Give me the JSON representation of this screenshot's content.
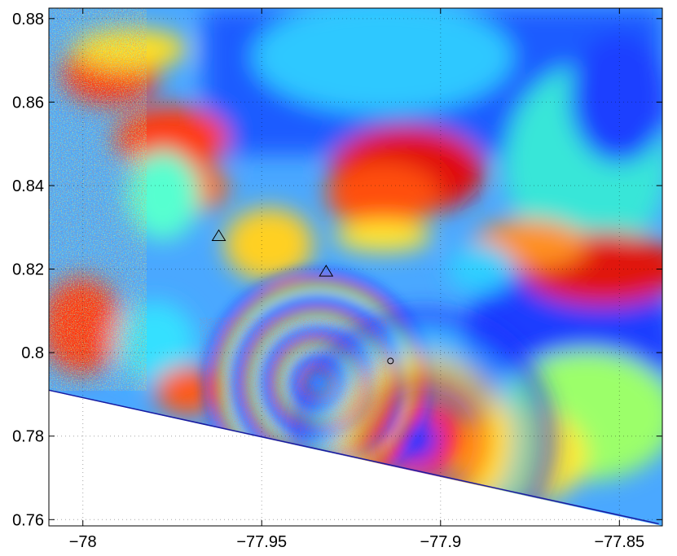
{
  "figure": {
    "type": "interferogram-map",
    "colormap": "jet",
    "grid": "dotted",
    "x_axis": {
      "ticks": [
        {
          "value": -78,
          "label": "−78"
        },
        {
          "value": -77.95,
          "label": "−77.95"
        },
        {
          "value": -77.9,
          "label": "−77.9"
        },
        {
          "value": -77.85,
          "label": "−77.85"
        }
      ],
      "range": [
        -78.0095,
        -77.838
      ]
    },
    "y_axis": {
      "ticks": [
        {
          "value": 0.88,
          "label": "0.88"
        },
        {
          "value": 0.86,
          "label": "0.86"
        },
        {
          "value": 0.84,
          "label": "0.84"
        },
        {
          "value": 0.82,
          "label": "0.82"
        },
        {
          "value": 0.8,
          "label": "0.8"
        },
        {
          "value": 0.78,
          "label": "0.78"
        },
        {
          "value": 0.76,
          "label": "0.76"
        }
      ],
      "range": [
        0.7585,
        0.8825
      ]
    },
    "markers": [
      {
        "shape": "triangle",
        "lon": -77.962,
        "lat": 0.828
      },
      {
        "shape": "triangle",
        "lon": -77.932,
        "lat": 0.8195
      },
      {
        "shape": "circle",
        "lon": -77.914,
        "lat": 0.798
      }
    ],
    "swath_boundary": [
      {
        "lon": -78.0095,
        "lat": 0.791
      },
      {
        "lon": -77.839,
        "lat": 0.759
      }
    ]
  }
}
